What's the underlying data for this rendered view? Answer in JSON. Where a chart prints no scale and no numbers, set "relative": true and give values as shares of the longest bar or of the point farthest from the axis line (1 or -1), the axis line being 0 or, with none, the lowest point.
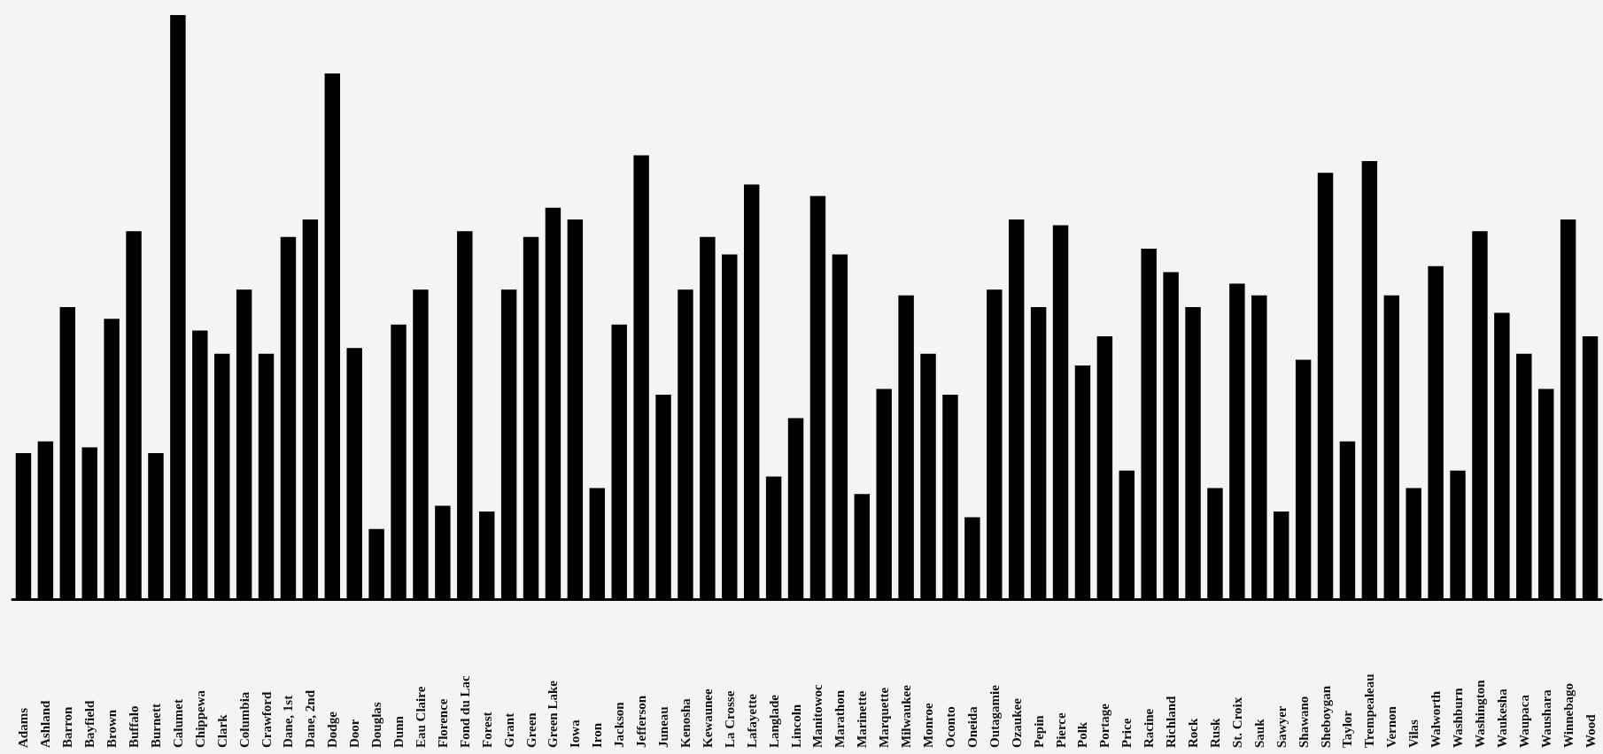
{
  "chart_data": {
    "type": "bar",
    "relative": true,
    "color": "#000000",
    "categories": [
      "Adams",
      "Ashland",
      "Barron",
      "Bayfield",
      "Brown",
      "Buffalo",
      "Burnett",
      "Calumet",
      "Chippewa",
      "Clark",
      "Columbia",
      "Crawford",
      "Dane, 1st",
      "Dane, 2nd",
      "Dodge",
      "Door",
      "Douglas",
      "Dunn",
      "Eau Claire",
      "Florence",
      "Fond du Lac",
      "Forest",
      "Grant",
      "Green",
      "Green Lake",
      "Iowa",
      "Iron",
      "Jackson",
      "Jefferson",
      "Juneau",
      "Kenosha",
      "Kewaunee",
      "La Crosse",
      "Lafayette",
      "Langlade",
      "Lincoln",
      "Manitowoc",
      "Marathon",
      "Marinette",
      "Marquette",
      "Milwaukee",
      "Monroe",
      "Oconto",
      "Oneida",
      "Outagamie",
      "Ozaukee",
      "Pepin",
      "Pierce",
      "Polk",
      "Portage",
      "Price",
      "Racine",
      "Richland",
      "Rock",
      "Rusk",
      "St. Croix",
      "Sauk",
      "Sawyer",
      "Shawano",
      "Sheboygan",
      "Taylor",
      "Trempealeau",
      "Vernon",
      "Vilas",
      "Walworth",
      "Washburn",
      "Washington",
      "Waukesha",
      "Waupaca",
      "Waushara",
      "Winnebago",
      "Wood"
    ],
    "values": [
      0.25,
      0.27,
      0.5,
      0.26,
      0.48,
      0.63,
      0.25,
      1,
      0.46,
      0.42,
      0.53,
      0.42,
      0.62,
      0.65,
      0.9,
      0.43,
      0.12,
      0.47,
      0.53,
      0.16,
      0.63,
      0.15,
      0.53,
      0.62,
      0.67,
      0.65,
      0.19,
      0.47,
      0.76,
      0.35,
      0.53,
      0.62,
      0.59,
      0.71,
      0.21,
      0.31,
      0.69,
      0.59,
      0.18,
      0.36,
      0.52,
      0.42,
      0.35,
      0.14,
      0.53,
      0.65,
      0.5,
      0.64,
      0.4,
      0.45,
      0.22,
      0.6,
      0.56,
      0.5,
      0.19,
      0.54,
      0.52,
      0.15,
      0.41,
      0.73,
      0.27,
      0.75,
      0.52,
      0.19,
      0.57,
      0.22,
      0.63,
      0.49,
      0.42,
      0.36,
      0.65,
      0.45
    ]
  }
}
